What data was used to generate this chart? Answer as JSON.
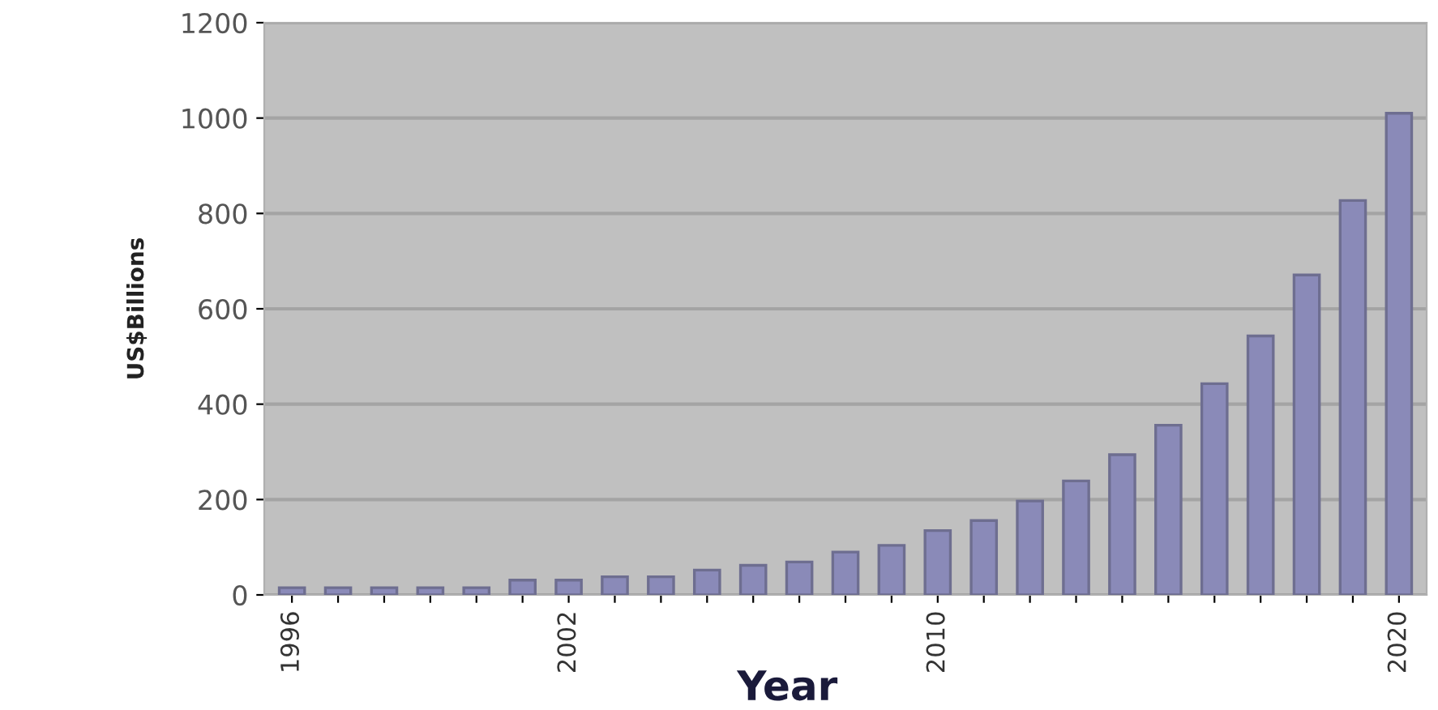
{
  "chart_data": {
    "type": "bar",
    "xlabel": "Year",
    "ylabel": "US$Billions",
    "categories": [
      "1996",
      null,
      null,
      null,
      null,
      null,
      "2002",
      null,
      null,
      null,
      null,
      null,
      null,
      null,
      "2010",
      null,
      null,
      null,
      null,
      null,
      null,
      null,
      null,
      null,
      "2020"
    ],
    "values": [
      15,
      15,
      15,
      15,
      15,
      31,
      31,
      38,
      38,
      52,
      62,
      69,
      90,
      104,
      135,
      156,
      197,
      239,
      294,
      356,
      443,
      543,
      671,
      827,
      1010
    ],
    "color": "#8a8ab8",
    "ylim": [
      0,
      1200
    ],
    "yticks": [
      0,
      200,
      400,
      600,
      800,
      1000,
      1200
    ],
    "grid": "y",
    "legend": false
  }
}
